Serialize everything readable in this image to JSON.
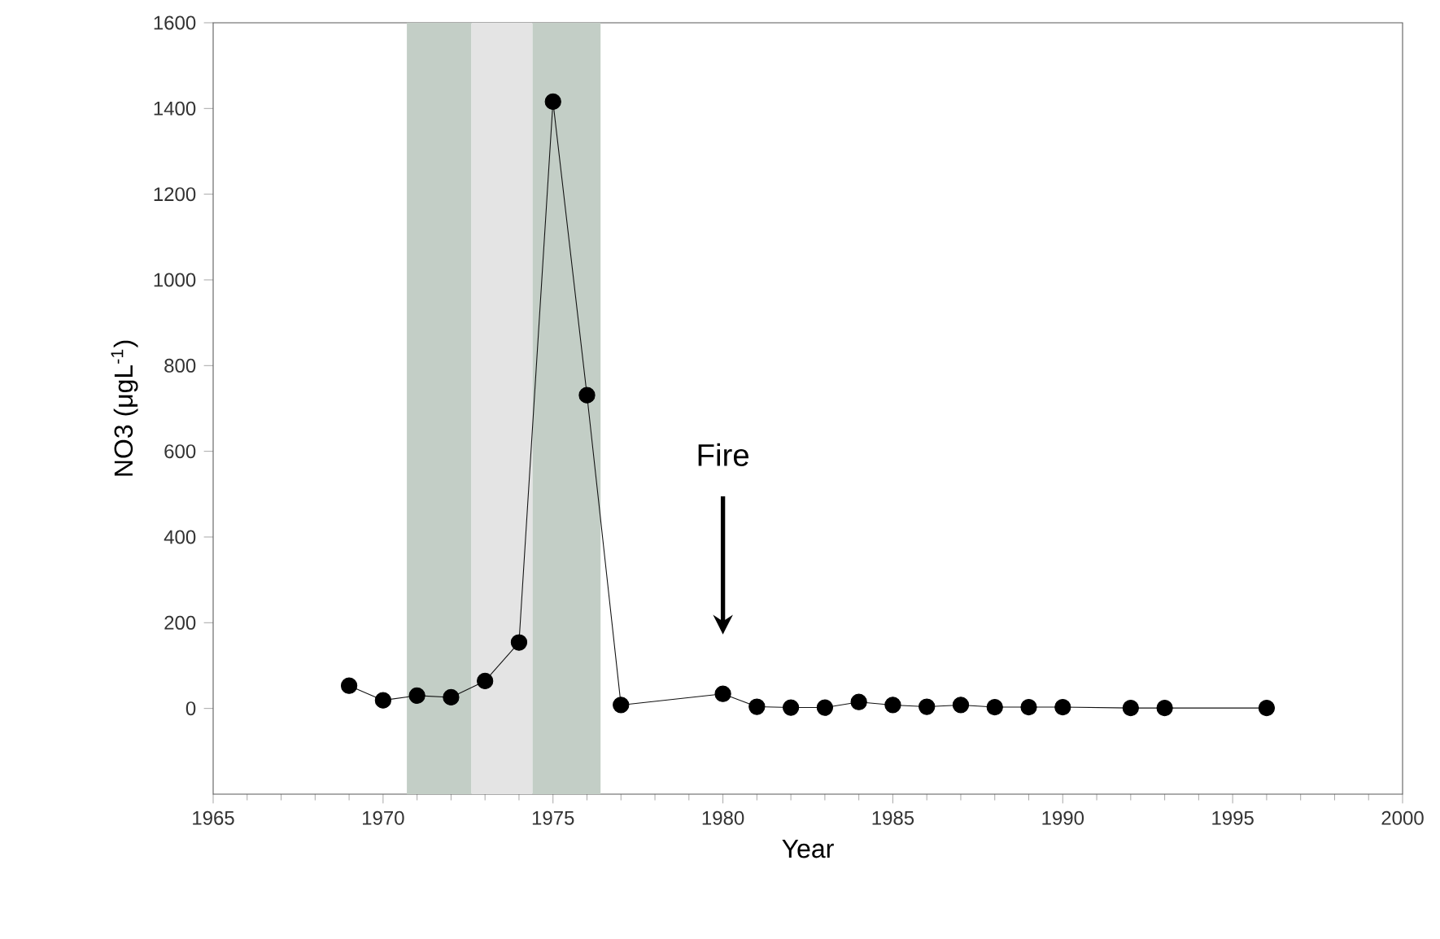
{
  "chart_data": {
    "type": "line",
    "xlabel": "Year",
    "ylabel": "NO3 (μgL$^{-1}$)",
    "x": [
      1969,
      1970,
      1971,
      1972,
      1973,
      1974,
      1975,
      1976,
      1977,
      1980,
      1981,
      1982,
      1983,
      1984,
      1985,
      1986,
      1987,
      1988,
      1989,
      1990,
      1992,
      1993,
      1996
    ],
    "series": [
      {
        "color": "#111111",
        "values": [
          53,
          19,
          30,
          26,
          64,
          154,
          1416,
          731,
          8,
          34,
          4,
          2,
          2,
          15,
          8,
          4,
          8,
          3,
          3,
          3,
          1,
          1,
          1
        ]
      }
    ],
    "xlim": [
      1965,
      2000
    ],
    "xticks": [
      1965,
      1970,
      1975,
      1980,
      1985,
      1990,
      1995,
      2000
    ],
    "ylim": [
      -200,
      1600
    ],
    "yticks": [
      0,
      200,
      400,
      600,
      800,
      1000,
      1200,
      1400,
      1600
    ],
    "bands": [
      {
        "axis": "x",
        "from": 1970.7,
        "to": 1972.6,
        "color": "#c3cec6"
      },
      {
        "axis": "x",
        "from": 1972.6,
        "to": 1974.4,
        "color": "#e4e4e4"
      },
      {
        "axis": "x",
        "from": 1974.4,
        "to": 1976.4,
        "color": "#c3cec6"
      }
    ],
    "annotations": [
      "Fire"
    ],
    "marker": "circle",
    "line_style": "solid"
  }
}
